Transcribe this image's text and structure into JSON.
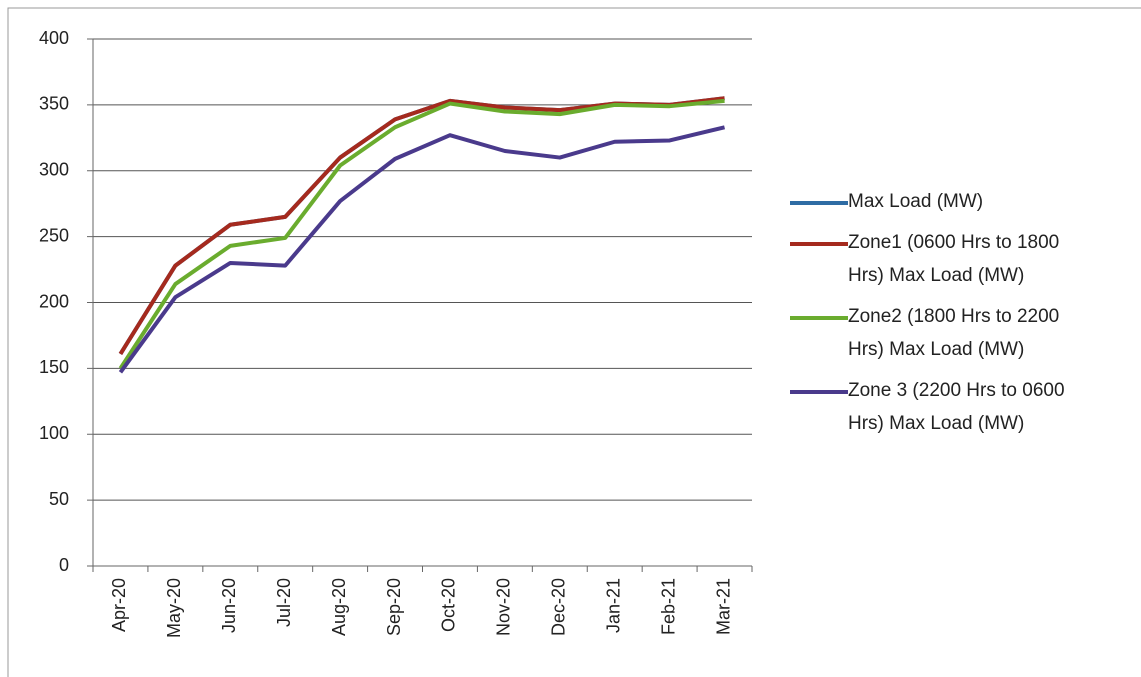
{
  "chart_data": {
    "type": "line",
    "categories": [
      "Apr-20",
      "May-20",
      "Jun-20",
      "Jul-20",
      "Aug-20",
      "Sep-20",
      "Oct-20",
      "Nov-20",
      "Dec-20",
      "Jan-21",
      "Feb-21",
      "Mar-21"
    ],
    "series": [
      {
        "name": "Max Load (MW)",
        "color": "#2e6ca4",
        "values": [
          161,
          228,
          259,
          265,
          310,
          339,
          353,
          348,
          346,
          351,
          350,
          355
        ]
      },
      {
        "name": "Zone1 (0600 Hrs to 1800 Hrs) Max Load (MW)",
        "color": "#a52a1e",
        "values": [
          161,
          228,
          259,
          265,
          310,
          339,
          353,
          348,
          346,
          351,
          350,
          355
        ]
      },
      {
        "name": "Zone2 (1800 Hrs to 2200 Hrs) Max Load (MW)",
        "color": "#6aac2e",
        "values": [
          150,
          214,
          243,
          249,
          304,
          333,
          351,
          345,
          343,
          350,
          349,
          353
        ]
      },
      {
        "name": "Zone 3 (2200 Hrs to 0600 Hrs) Max Load (MW)",
        "color": "#4a3a8c",
        "values": [
          147,
          204,
          230,
          228,
          277,
          309,
          327,
          315,
          310,
          322,
          323,
          333
        ]
      }
    ],
    "ylim": [
      0,
      400
    ],
    "yticks": [
      0,
      50,
      100,
      150,
      200,
      250,
      300,
      350,
      400
    ],
    "grid": true,
    "legend": "right"
  }
}
